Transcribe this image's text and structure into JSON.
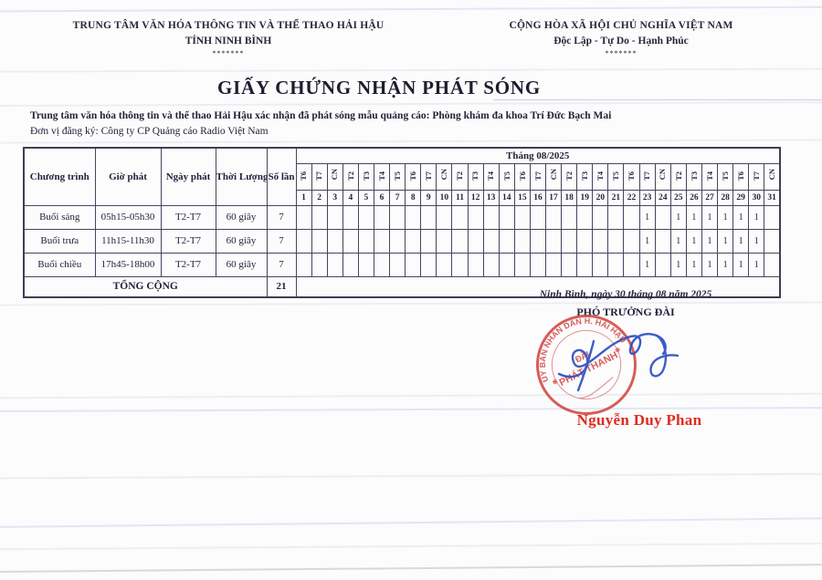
{
  "header": {
    "left": {
      "line1": "TRUNG TÂM VĂN HÓA THÔNG TIN VÀ THỂ THAO HẢI HẬU",
      "line2": "TỈNH NINH BÌNH",
      "stars": "*******"
    },
    "right": {
      "line1": "CỘNG HÒA XÃ HỘI CHỦ NGHĨA VIỆT NAM",
      "line2": "Độc Lập - Tự Do - Hạnh Phúc",
      "stars": "*******"
    }
  },
  "title": "GIẤY CHỨNG NHẬN PHÁT SÓNG",
  "intro": {
    "line1": "Trung tâm văn hóa thông tin và thể thao Hải Hậu xác nhận đã phát sóng mẫu quảng cáo: Phòng khám đa khoa Trí Đức Bạch Mai",
    "line2": "Đơn vị đăng ký: Công ty CP Quảng cáo Radio Việt Nam"
  },
  "table": {
    "columns": [
      "Chương trình",
      "Giờ phát",
      "Ngày phát",
      "Thời Lượng",
      "Số lần"
    ],
    "month_header": "Tháng 08/2025",
    "weekdays": [
      "T6",
      "T7",
      "CN",
      "T2",
      "T3",
      "T4",
      "T5",
      "T6",
      "T7",
      "CN",
      "T2",
      "T3",
      "T4",
      "T5",
      "T6",
      "T7",
      "CN",
      "T2",
      "T3",
      "T4",
      "T5",
      "T6",
      "T7",
      "CN",
      "T2",
      "T3",
      "T4",
      "T5",
      "T6",
      "T7",
      "CN"
    ],
    "day_numbers": [
      1,
      2,
      3,
      4,
      5,
      6,
      7,
      8,
      9,
      10,
      11,
      12,
      13,
      14,
      15,
      16,
      17,
      18,
      19,
      20,
      21,
      22,
      23,
      24,
      25,
      26,
      27,
      28,
      29,
      30,
      31
    ],
    "rows": [
      {
        "program": "Buổi sáng",
        "time": "05h15-05h30",
        "days": "T2-T7",
        "duration": "60 giây",
        "count": "7"
      },
      {
        "program": "Buổi trưa",
        "time": "11h15-11h30",
        "days": "T2-T7",
        "duration": "60 giây",
        "count": "7"
      },
      {
        "program": "Buổi chiều",
        "time": "17h45-18h00",
        "days": "T2-T7",
        "duration": "60 giây",
        "count": "7"
      }
    ],
    "marked_days": [
      23,
      25,
      26,
      27,
      28,
      29,
      30
    ],
    "mark_symbol": "1",
    "total_label": "TỔNG CỘNG",
    "total_value": "21"
  },
  "footer": {
    "date_line": "Ninh Bình, ngày  30  tháng  08  năm  2025",
    "position": "PHÓ TRƯỞNG ĐÀI",
    "signer_name": "Nguyễn Duy Phan",
    "stamp": {
      "arc_text": "ỦY BAN NHÂN DÂN H. HẢI HẬU",
      "center_line1": "ĐÀI",
      "center_line2": "PHÁT THANH"
    }
  },
  "colors": {
    "stamp_red": "#cf3b36",
    "signature_blue": "#2d4fc2",
    "name_red": "#e02a20",
    "ink": "#26263a"
  }
}
